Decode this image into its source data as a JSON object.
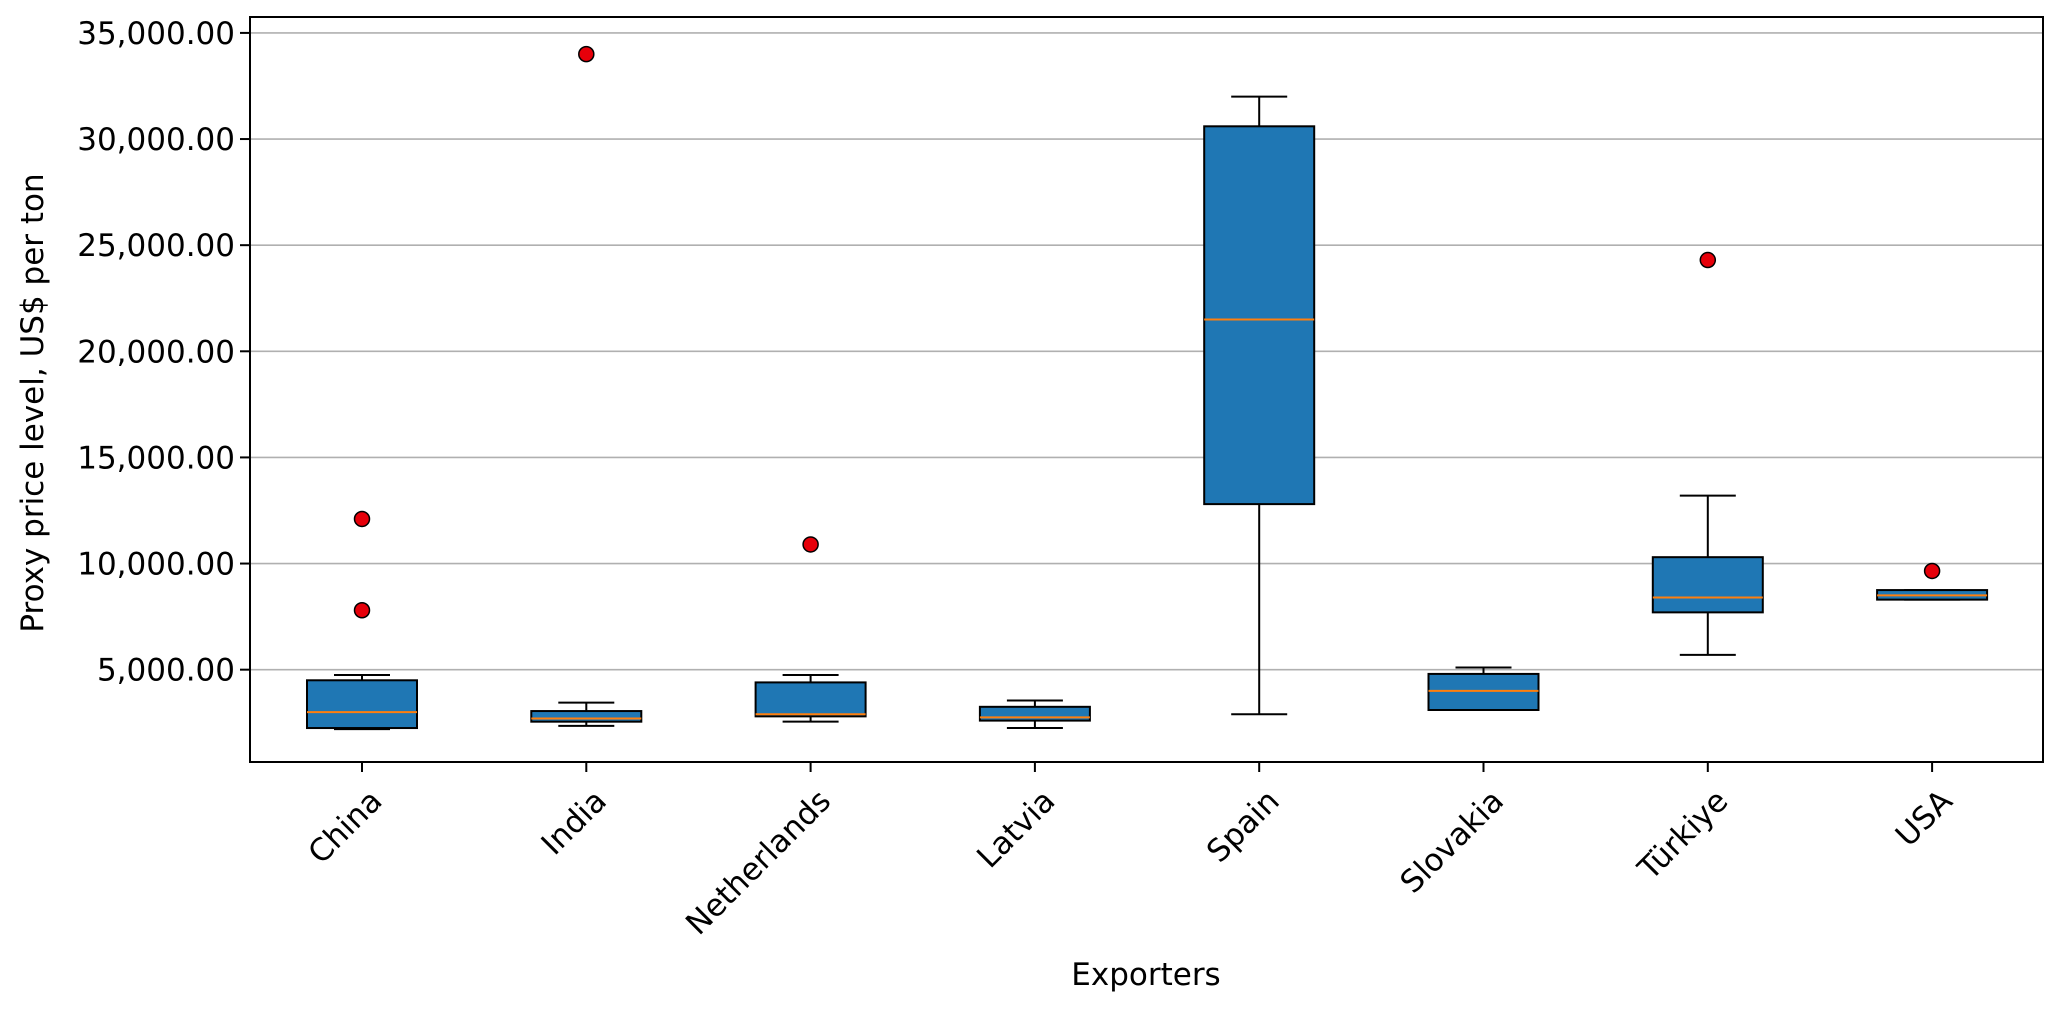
{
  "chart_data": {
    "type": "box",
    "xlabel": "Exporters",
    "ylabel": "Proxy price level, US$ per ton",
    "ylim": [
      650,
      35750
    ],
    "grid": "horizontal",
    "y_ticks": [
      5000,
      10000,
      15000,
      20000,
      25000,
      30000,
      35000
    ],
    "y_tick_labels": [
      "5,000.00",
      "10,000.00",
      "15,000.00",
      "20,000.00",
      "25,000.00",
      "30,000.00",
      "35,000.00"
    ],
    "categories": [
      "China",
      "India",
      "Netherlands",
      "Latvia",
      "Spain",
      "Slovakia",
      "Türkiye",
      "USA"
    ],
    "boxes": [
      {
        "whisker_low": 2200,
        "q1": 2250,
        "median": 3000,
        "q3": 4500,
        "whisker_high": 4750,
        "outliers": [
          12100,
          7800
        ]
      },
      {
        "whisker_low": 2350,
        "q1": 2550,
        "median": 2700,
        "q3": 3050,
        "whisker_high": 3450,
        "outliers": [
          34000
        ]
      },
      {
        "whisker_low": 2550,
        "q1": 2800,
        "median": 2900,
        "q3": 4400,
        "whisker_high": 4750,
        "outliers": [
          10900
        ]
      },
      {
        "whisker_low": 2250,
        "q1": 2600,
        "median": 2750,
        "q3": 3250,
        "whisker_high": 3550,
        "outliers": []
      },
      {
        "whisker_low": 2900,
        "q1": 12800,
        "median": 21500,
        "q3": 30600,
        "whisker_high": 32000,
        "outliers": []
      },
      {
        "whisker_low": 3100,
        "q1": 3100,
        "median": 4000,
        "q3": 4800,
        "whisker_high": 5100,
        "outliers": []
      },
      {
        "whisker_low": 5700,
        "q1": 7700,
        "median": 8400,
        "q3": 10300,
        "whisker_high": 13200,
        "outliers": [
          24300
        ]
      },
      {
        "whisker_low": 8300,
        "q1": 8300,
        "median": 8500,
        "q3": 8750,
        "whisker_high": 8750,
        "outliers": [
          9650
        ]
      }
    ],
    "colors": {
      "box_fill": "#1f77b4",
      "median": "#ff7f0e",
      "outlier": "#e6000a",
      "grid": "#b0b0b0"
    }
  }
}
